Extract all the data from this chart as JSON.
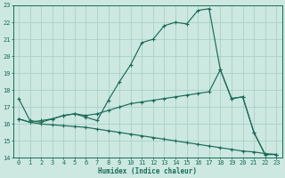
{
  "title": "",
  "xlabel": "Humidex (Indice chaleur)",
  "bg_color": "#cce8e0",
  "grid_color": "#aad0c8",
  "line_color": "#1a6b5a",
  "line1_x": [
    0,
    1,
    2,
    3,
    4,
    5,
    6,
    7,
    8,
    9,
    10,
    11,
    12,
    13,
    14,
    15,
    16,
    17,
    18,
    19,
    20,
    21,
    22,
    23
  ],
  "line1_y": [
    17.5,
    16.2,
    16.1,
    16.3,
    16.5,
    16.6,
    16.4,
    16.2,
    17.4,
    18.5,
    19.5,
    20.8,
    21.0,
    21.8,
    22.0,
    21.9,
    22.7,
    22.8,
    19.2,
    17.5,
    17.6,
    15.5,
    14.2,
    14.2
  ],
  "line2_x": [
    0,
    1,
    2,
    3,
    4,
    5,
    6,
    7,
    8,
    9,
    10,
    11,
    12,
    13,
    14,
    15,
    16,
    17,
    18,
    19,
    20,
    21,
    22,
    23
  ],
  "line2_y": [
    16.3,
    16.1,
    16.2,
    16.3,
    16.5,
    16.6,
    16.5,
    16.6,
    16.8,
    17.0,
    17.2,
    17.3,
    17.4,
    17.5,
    17.6,
    17.7,
    17.8,
    17.9,
    19.2,
    17.5,
    17.6,
    15.5,
    14.2,
    14.2
  ],
  "line3_x": [
    0,
    1,
    2,
    3,
    4,
    5,
    6,
    7,
    8,
    9,
    10,
    11,
    12,
    13,
    14,
    15,
    16,
    17,
    18,
    19,
    20,
    21,
    22,
    23
  ],
  "line3_y": [
    16.3,
    16.1,
    16.0,
    15.95,
    15.9,
    15.85,
    15.8,
    15.7,
    15.6,
    15.5,
    15.4,
    15.3,
    15.2,
    15.1,
    15.0,
    14.9,
    14.8,
    14.7,
    14.6,
    14.5,
    14.4,
    14.35,
    14.25,
    14.2
  ],
  "xlim": [
    -0.5,
    23.5
  ],
  "ylim": [
    14,
    23
  ],
  "yticks": [
    14,
    15,
    16,
    17,
    18,
    19,
    20,
    21,
    22,
    23
  ],
  "xticks": [
    0,
    1,
    2,
    3,
    4,
    5,
    6,
    7,
    8,
    9,
    10,
    11,
    12,
    13,
    14,
    15,
    16,
    17,
    18,
    19,
    20,
    21,
    22,
    23
  ]
}
